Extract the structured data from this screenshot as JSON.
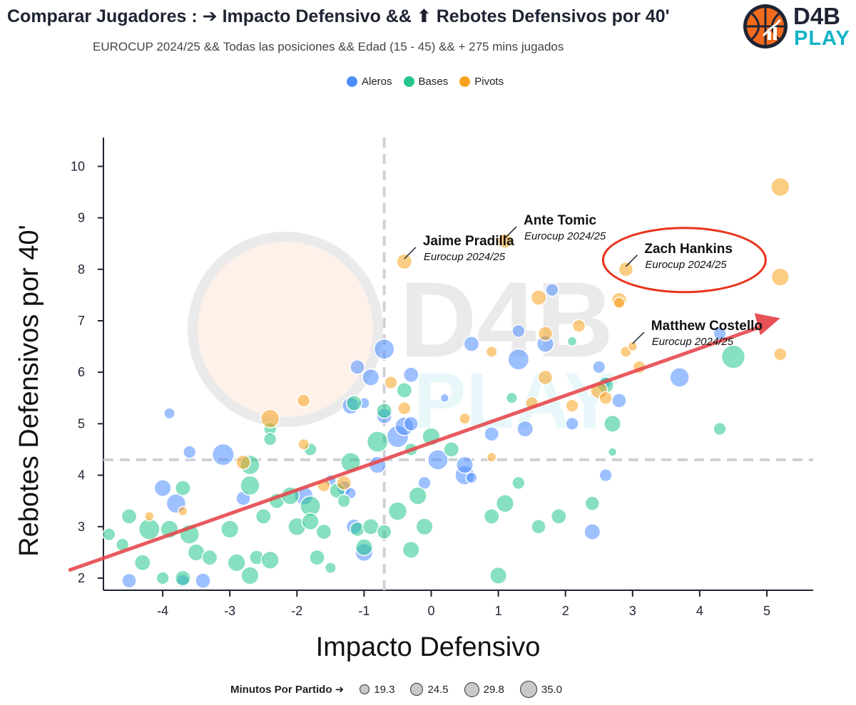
{
  "title": "Comparar Jugadores : ➔ Impacto Defensivo && ⬆ Rebotes Defensivos por 40'",
  "subtitle": "EUROCUP 2024/25 && Todas las posiciones && Edad (15 - 45) && + 275 mins jugados",
  "logo": {
    "line1": "D4B",
    "line2": "PLAY",
    "icon": "basketball-chart-icon"
  },
  "colors": {
    "Aleros": "#4c8dff",
    "Bases": "#25c68b",
    "Pivots": "#f7a21d",
    "trend": "#e5484d",
    "highlight": "#e8341c"
  },
  "size_legend": {
    "label": "Minutos Por Partido ➜",
    "values": [
      "19.3",
      "24.5",
      "29.8",
      "35.0"
    ]
  },
  "chart_data": {
    "type": "scatter",
    "title": "Comparar Jugadores : ➔ Impacto Defensivo && ⬆ Rebotes Defensivos por 40'",
    "xlabel": "Impacto Defensivo",
    "ylabel": "Rebotes Defensivos por 40'",
    "xlim": [
      -5,
      5.7
    ],
    "ylim": [
      1.7,
      10.6
    ],
    "xticks": [
      "-4",
      "-3",
      "-2",
      "-1",
      "0",
      "1",
      "2",
      "3",
      "4",
      "5"
    ],
    "yticks": [
      "2",
      "3",
      "4",
      "5",
      "6",
      "7",
      "8",
      "9",
      "10"
    ],
    "ref_lines": {
      "x": -0.7,
      "y": 4.3
    },
    "legend": {
      "position": "top-center",
      "entries": [
        "Aleros",
        "Bases",
        "Pivots"
      ]
    },
    "trend": {
      "from": [
        -5.4,
        2.15
      ],
      "to": [
        5.2,
        7.05
      ]
    },
    "labels": [
      {
        "name": "Jaime Pradilla",
        "sub": "Eurocup 2024/25",
        "x": -0.4,
        "y": 8.15
      },
      {
        "name": "Ante Tomic",
        "sub": "Eurocup 2024/25",
        "x": 1.1,
        "y": 8.55
      },
      {
        "name": "Zach Hankins",
        "sub": "Eurocup 2024/25",
        "x": 2.9,
        "y": 8.0,
        "highlighted": true
      },
      {
        "name": "Matthew Costello",
        "sub": "Eurocup 2024/25",
        "x": 3.0,
        "y": 6.5
      }
    ],
    "series": [
      {
        "name": "Aleros",
        "points": [
          [
            -3.9,
            5.2,
            20
          ],
          [
            -3.6,
            4.45,
            22
          ],
          [
            -4.0,
            3.75,
            27
          ],
          [
            -3.8,
            3.45,
            30
          ],
          [
            -3.1,
            4.4,
            33
          ],
          [
            -2.8,
            3.55,
            24
          ],
          [
            -1.9,
            3.6,
            29
          ],
          [
            -1.5,
            3.9,
            20
          ],
          [
            -1.3,
            3.75,
            24
          ],
          [
            -1.2,
            3.65,
            20
          ],
          [
            -1.2,
            5.35,
            27
          ],
          [
            -1.1,
            6.1,
            24
          ],
          [
            -1.0,
            5.4,
            20
          ],
          [
            -0.9,
            5.9,
            27
          ],
          [
            -0.7,
            6.45,
            31
          ],
          [
            -0.7,
            5.15,
            25
          ],
          [
            -0.5,
            4.75,
            33
          ],
          [
            -0.4,
            4.95,
            29
          ],
          [
            -0.3,
            5.0,
            24
          ],
          [
            -0.3,
            5.95,
            25
          ],
          [
            -0.8,
            4.2,
            27
          ],
          [
            -1.15,
            3.0,
            25
          ],
          [
            -1.0,
            2.5,
            28
          ],
          [
            -3.7,
            1.95,
            22
          ],
          [
            -4.5,
            1.95,
            24
          ],
          [
            -3.4,
            1.95,
            25
          ],
          [
            0.2,
            5.5,
            17
          ],
          [
            0.1,
            4.3,
            31
          ],
          [
            0.5,
            4.0,
            30
          ],
          [
            0.5,
            4.2,
            27
          ],
          [
            0.6,
            3.95,
            20
          ],
          [
            0.6,
            6.55,
            25
          ],
          [
            0.9,
            4.8,
            24
          ],
          [
            1.3,
            6.25,
            32
          ],
          [
            1.3,
            6.8,
            22
          ],
          [
            1.4,
            4.9,
            26
          ],
          [
            1.7,
            6.55,
            27
          ],
          [
            1.8,
            7.6,
            22
          ],
          [
            2.1,
            5.0,
            22
          ],
          [
            2.5,
            6.1,
            22
          ],
          [
            2.6,
            5.8,
            20
          ],
          [
            2.8,
            5.45,
            24
          ],
          [
            2.6,
            4.0,
            22
          ],
          [
            2.4,
            2.9,
            26
          ],
          [
            3.7,
            5.9,
            30
          ],
          [
            4.3,
            6.75,
            22
          ],
          [
            -0.1,
            3.85,
            22
          ]
        ]
      },
      {
        "name": "Bases",
        "points": [
          [
            -4.8,
            2.85,
            22
          ],
          [
            -4.5,
            3.2,
            25
          ],
          [
            -4.6,
            2.65,
            22
          ],
          [
            -4.3,
            2.3,
            26
          ],
          [
            -4.0,
            2.0,
            22
          ],
          [
            -4.2,
            2.95,
            32
          ],
          [
            -3.9,
            2.95,
            28
          ],
          [
            -3.6,
            2.85,
            30
          ],
          [
            -3.5,
            2.5,
            27
          ],
          [
            -3.0,
            2.95,
            28
          ],
          [
            -3.3,
            2.4,
            25
          ],
          [
            -2.9,
            2.3,
            28
          ],
          [
            -2.7,
            2.05,
            28
          ],
          [
            -2.6,
            2.4,
            24
          ],
          [
            -2.4,
            2.35,
            28
          ],
          [
            -2.7,
            3.8,
            30
          ],
          [
            -2.7,
            4.2,
            30
          ],
          [
            -2.5,
            3.2,
            25
          ],
          [
            -2.3,
            3.5,
            25
          ],
          [
            -2.1,
            3.6,
            28
          ],
          [
            -2.0,
            3.0,
            28
          ],
          [
            -1.8,
            3.4,
            31
          ],
          [
            -1.8,
            3.1,
            27
          ],
          [
            -1.6,
            2.9,
            25
          ],
          [
            -1.7,
            2.4,
            25
          ],
          [
            -1.5,
            2.2,
            20
          ],
          [
            -1.4,
            3.7,
            25
          ],
          [
            -1.3,
            3.5,
            22
          ],
          [
            -1.1,
            2.95,
            24
          ],
          [
            -1.0,
            2.6,
            27
          ],
          [
            -1.2,
            4.25,
            30
          ],
          [
            -0.9,
            3.0,
            26
          ],
          [
            -0.7,
            2.9,
            24
          ],
          [
            -0.5,
            3.3,
            29
          ],
          [
            -0.3,
            2.55,
            27
          ],
          [
            -0.2,
            3.6,
            28
          ],
          [
            -0.1,
            3.0,
            27
          ],
          [
            0.0,
            4.75,
            28
          ],
          [
            0.3,
            4.5,
            25
          ],
          [
            -0.4,
            5.65,
            25
          ],
          [
            -0.8,
            4.65,
            32
          ],
          [
            -2.4,
            4.9,
            22
          ],
          [
            -2.4,
            4.7,
            22
          ],
          [
            -1.8,
            4.5,
            22
          ],
          [
            -3.7,
            2.0,
            25
          ],
          [
            -3.7,
            3.75,
            25
          ],
          [
            0.9,
            3.2,
            25
          ],
          [
            1.0,
            2.05,
            27
          ],
          [
            1.1,
            3.45,
            28
          ],
          [
            1.2,
            5.5,
            20
          ],
          [
            1.3,
            3.85,
            22
          ],
          [
            1.6,
            3.0,
            24
          ],
          [
            1.9,
            3.2,
            25
          ],
          [
            2.1,
            6.6,
            18
          ],
          [
            2.4,
            3.45,
            24
          ],
          [
            2.6,
            5.75,
            26
          ],
          [
            2.7,
            4.45,
            17
          ],
          [
            2.7,
            5.0,
            27
          ],
          [
            4.3,
            4.9,
            22
          ],
          [
            4.5,
            6.3,
            35
          ],
          [
            -1.15,
            5.4,
            25
          ],
          [
            -0.7,
            5.25,
            25
          ],
          [
            -0.3,
            4.5,
            22
          ]
        ]
      },
      {
        "name": "Pivots",
        "points": [
          [
            -4.2,
            3.2,
            18
          ],
          [
            -3.7,
            3.3,
            18
          ],
          [
            -2.8,
            4.25,
            24
          ],
          [
            -2.4,
            5.1,
            29
          ],
          [
            -1.9,
            5.45,
            22
          ],
          [
            -1.9,
            4.6,
            20
          ],
          [
            -1.6,
            3.8,
            22
          ],
          [
            -1.3,
            3.85,
            24
          ],
          [
            -0.6,
            5.8,
            22
          ],
          [
            -0.4,
            5.3,
            22
          ],
          [
            -0.4,
            8.15,
            25
          ],
          [
            0.5,
            5.1,
            20
          ],
          [
            0.9,
            6.4,
            20
          ],
          [
            0.9,
            4.35,
            18
          ],
          [
            1.1,
            8.55,
            24
          ],
          [
            1.6,
            7.45,
            25
          ],
          [
            1.7,
            6.75,
            24
          ],
          [
            1.7,
            5.9,
            24
          ],
          [
            1.5,
            5.4,
            22
          ],
          [
            2.2,
            6.9,
            22
          ],
          [
            2.1,
            5.35,
            22
          ],
          [
            2.5,
            5.65,
            27
          ],
          [
            2.6,
            5.5,
            22
          ],
          [
            2.8,
            7.4,
            25
          ],
          [
            2.8,
            7.35,
            20
          ],
          [
            2.9,
            8.0,
            24
          ],
          [
            2.9,
            6.4,
            20
          ],
          [
            3.0,
            6.5,
            18
          ],
          [
            3.1,
            6.1,
            22
          ],
          [
            5.2,
            9.6,
            29
          ],
          [
            5.2,
            7.85,
            28
          ],
          [
            5.2,
            6.35,
            22
          ]
        ]
      }
    ]
  }
}
